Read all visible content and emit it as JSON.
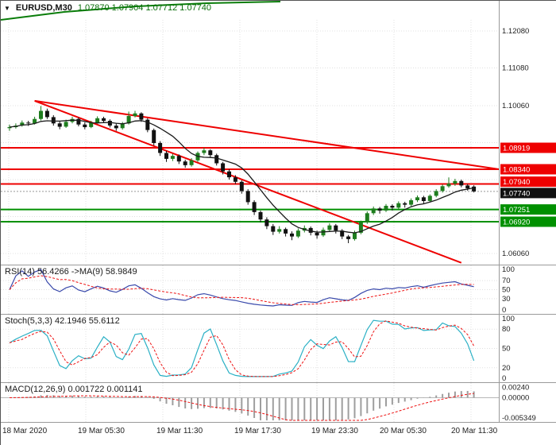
{
  "header": {
    "dropdown_icon": "▼",
    "symbol": "EURUSD,M30",
    "ohlc": "1.07870 1.07904 1.07712 1.07740"
  },
  "colors": {
    "bull": "#1e7d1e",
    "bear": "#111111",
    "trend": "#ee0000",
    "level_red": "#ee0000",
    "level_green": "#009000",
    "badge_black": "#111111",
    "rsi_line": "#3949ab",
    "stoch_main": "#2ab0c5",
    "signal_red": "#ee1111",
    "macd_hist": "#9e9e9e",
    "ma_line": "#1a1a1a",
    "top_curve": "#0a7d0a",
    "grid": "#e0e0e0"
  },
  "chart_data": [
    {
      "id": "price",
      "type": "candlestick",
      "symbol": "EURUSD",
      "timeframe": "M30",
      "current_price": 1.0774,
      "ylim": [
        1.058,
        1.123
      ],
      "x_labels": [
        "18 Mar 2020",
        "19 Mar 05:30",
        "19 Mar 11:30",
        "19 Mar 17:30",
        "19 Mar 23:30",
        "20 Mar 05:30",
        "20 Mar 11:30"
      ],
      "axis_labels": [
        {
          "text": "1.12080",
          "price": 1.1208
        },
        {
          "text": "1.11080",
          "price": 1.1108
        },
        {
          "text": "1.10060",
          "price": 1.1006
        },
        {
          "text": "1.06060",
          "price": 1.0606
        }
      ],
      "badges": [
        {
          "text": "1.08919",
          "price": 1.08919,
          "color": "red",
          "dy": 0
        },
        {
          "text": "1.08340",
          "price": 1.0834,
          "color": "red",
          "dy": 0
        },
        {
          "text": "1.07940",
          "price": 1.0794,
          "color": "red",
          "dy": -3
        },
        {
          "text": "1.07740",
          "price": 1.0774,
          "color": "black",
          "dy": 2
        },
        {
          "text": "1.07251",
          "price": 1.07251,
          "color": "green",
          "dy": 0
        },
        {
          "text": "1.06920",
          "price": 1.0692,
          "color": "green",
          "dy": 0
        }
      ],
      "hlines": [
        {
          "price": 1.08919,
          "color": "red"
        },
        {
          "price": 1.0834,
          "color": "red"
        },
        {
          "price": 1.0794,
          "color": "red"
        },
        {
          "price": 1.07251,
          "color": "green"
        },
        {
          "price": 1.0692,
          "color": "green"
        }
      ],
      "trendlines": [
        {
          "i1": 4,
          "p1": 1.1019,
          "i2": 72,
          "p2": 1.0581
        },
        {
          "i1": 4,
          "p1": 1.1019,
          "i2": 78,
          "p2": 1.0834
        }
      ],
      "top_curve": [
        [
          0,
          24
        ],
        [
          80,
          14
        ],
        [
          170,
          7
        ],
        [
          260,
          3
        ],
        [
          352,
          1
        ]
      ],
      "ma_period": 8,
      "ohlc": [
        [
          1.0945,
          1.0955,
          1.0938,
          1.0948
        ],
        [
          1.0948,
          1.0958,
          1.0944,
          1.0952
        ],
        [
          1.0952,
          1.0966,
          1.0949,
          1.096
        ],
        [
          1.096,
          1.0965,
          1.0951,
          1.0958
        ],
        [
          1.0958,
          1.0976,
          1.0955,
          1.097
        ],
        [
          1.097,
          1.1005,
          1.0966,
          1.0992
        ],
        [
          1.0992,
          1.0998,
          1.097,
          1.0975
        ],
        [
          1.0975,
          1.098,
          1.0952,
          1.0958
        ],
        [
          1.0958,
          1.0964,
          1.0942,
          1.0949
        ],
        [
          1.0949,
          1.0968,
          1.0946,
          1.0962
        ],
        [
          1.0962,
          1.0976,
          1.0958,
          1.097
        ],
        [
          1.097,
          1.0974,
          1.095,
          1.0955
        ],
        [
          1.0955,
          1.0961,
          1.0942,
          1.0948
        ],
        [
          1.0948,
          1.0965,
          1.0945,
          1.096
        ],
        [
          1.096,
          1.0977,
          1.0957,
          1.0972
        ],
        [
          1.0972,
          1.0976,
          1.096,
          1.0965
        ],
        [
          1.0965,
          1.0969,
          1.0947,
          1.0952
        ],
        [
          1.0952,
          1.0958,
          1.0938,
          1.0945
        ],
        [
          1.0945,
          1.0962,
          1.0941,
          1.0958
        ],
        [
          1.0958,
          1.099,
          1.0955,
          1.0978
        ],
        [
          1.0978,
          1.0992,
          1.0974,
          1.0985
        ],
        [
          1.0985,
          1.0988,
          1.0962,
          1.0968
        ],
        [
          1.0968,
          1.0972,
          1.0934,
          1.094
        ],
        [
          1.094,
          1.0944,
          1.0898,
          1.0905
        ],
        [
          1.0905,
          1.091,
          1.087,
          1.0878
        ],
        [
          1.0878,
          1.0884,
          1.0854,
          1.0862
        ],
        [
          1.0862,
          1.0876,
          1.0856,
          1.087
        ],
        [
          1.087,
          1.0874,
          1.0848,
          1.0855
        ],
        [
          1.0855,
          1.086,
          1.0838,
          1.0845
        ],
        [
          1.0845,
          1.0864,
          1.0841,
          1.0858
        ],
        [
          1.0858,
          1.0882,
          1.0854,
          1.0878
        ],
        [
          1.0878,
          1.0892,
          1.0872,
          1.0885
        ],
        [
          1.0885,
          1.0888,
          1.0866,
          1.0872
        ],
        [
          1.0872,
          1.0876,
          1.0844,
          1.085
        ],
        [
          1.085,
          1.0854,
          1.082,
          1.0828
        ],
        [
          1.0828,
          1.0834,
          1.0806,
          1.0812
        ],
        [
          1.0812,
          1.0818,
          1.0794,
          1.08
        ],
        [
          1.08,
          1.0804,
          1.0768,
          1.0775
        ],
        [
          1.0775,
          1.078,
          1.0738,
          1.0745
        ],
        [
          1.0745,
          1.075,
          1.071,
          1.0718
        ],
        [
          1.0718,
          1.0722,
          1.069,
          1.0698
        ],
        [
          1.0698,
          1.0704,
          1.0672,
          1.068
        ],
        [
          1.068,
          1.0686,
          1.0656,
          1.0665
        ],
        [
          1.0665,
          1.068,
          1.066,
          1.0672
        ],
        [
          1.0672,
          1.0676,
          1.0652,
          1.066
        ],
        [
          1.066,
          1.0666,
          1.0642,
          1.0652
        ],
        [
          1.0652,
          1.0674,
          1.0648,
          1.0668
        ],
        [
          1.0668,
          1.0682,
          1.0663,
          1.0675
        ],
        [
          1.0675,
          1.0679,
          1.0655,
          1.0662
        ],
        [
          1.0662,
          1.0668,
          1.0646,
          1.0655
        ],
        [
          1.0655,
          1.0676,
          1.0651,
          1.067
        ],
        [
          1.067,
          1.0688,
          1.0666,
          1.0682
        ],
        [
          1.0682,
          1.0686,
          1.066,
          1.0668
        ],
        [
          1.0668,
          1.0672,
          1.0645,
          1.0652
        ],
        [
          1.0652,
          1.0656,
          1.0634,
          1.0645
        ],
        [
          1.0645,
          1.0668,
          1.0641,
          1.0662
        ],
        [
          1.0662,
          1.0695,
          1.0658,
          1.069
        ],
        [
          1.069,
          1.072,
          1.0686,
          1.0715
        ],
        [
          1.0715,
          1.0733,
          1.071,
          1.0728
        ],
        [
          1.0728,
          1.0732,
          1.0714,
          1.0722
        ],
        [
          1.0722,
          1.074,
          1.0718,
          1.0735
        ],
        [
          1.0735,
          1.0739,
          1.0722,
          1.073
        ],
        [
          1.073,
          1.0747,
          1.0726,
          1.0742
        ],
        [
          1.0742,
          1.0746,
          1.073,
          1.0738
        ],
        [
          1.0738,
          1.0755,
          1.0734,
          1.075
        ],
        [
          1.075,
          1.0763,
          1.0745,
          1.0758
        ],
        [
          1.0758,
          1.0762,
          1.074,
          1.0748
        ],
        [
          1.0748,
          1.0766,
          1.0744,
          1.0762
        ],
        [
          1.0762,
          1.078,
          1.0758,
          1.0775
        ],
        [
          1.0775,
          1.0793,
          1.0771,
          1.0788
        ],
        [
          1.0788,
          1.0812,
          1.0784,
          1.0795
        ],
        [
          1.0795,
          1.0808,
          1.0789,
          1.0802
        ],
        [
          1.0802,
          1.0806,
          1.0785,
          1.079
        ],
        [
          1.079,
          1.0794,
          1.0776,
          1.0782
        ],
        [
          1.0787,
          1.07904,
          1.07712,
          1.0774
        ]
      ]
    },
    {
      "id": "rsi",
      "type": "line",
      "label": "RSI(14) 56.4266  ->MA(9) 58.9849",
      "params": {
        "period": 14,
        "ma_period": 9
      },
      "current": 56.4266,
      "ma_current": 58.9849,
      "ylim": [
        0,
        100
      ],
      "levels": [
        70,
        50,
        30
      ],
      "axis": [
        {
          "text": "100",
          "v": 100
        },
        {
          "text": "70",
          "v": 70
        },
        {
          "text": "50",
          "v": 50
        },
        {
          "text": "30",
          "v": 30
        },
        {
          "text": "0",
          "v": 0
        }
      ]
    },
    {
      "id": "stoch",
      "type": "line",
      "label": "Stoch(5,3,3) 42.1946 55.6112",
      "params": {
        "k": 5,
        "d": 3,
        "slowing": 3
      },
      "current": 42.1946,
      "signal_current": 55.6112,
      "ylim": [
        0,
        100
      ],
      "levels": [
        80,
        50,
        20
      ],
      "axis": [
        {
          "text": "100",
          "v": 100
        },
        {
          "text": "80",
          "v": 80
        },
        {
          "text": "50",
          "v": 50
        },
        {
          "text": "20",
          "v": 20
        },
        {
          "text": "0",
          "v": 0
        }
      ]
    },
    {
      "id": "macd",
      "type": "histogram",
      "label": "MACD(12,26,9) 0.001722 0.001141",
      "params": {
        "fast": 12,
        "slow": 26,
        "signal": 9
      },
      "current": 0.001722,
      "signal_current": 0.001141,
      "ylim": [
        -0.005349,
        0.0031
      ],
      "axis": [
        {
          "text": "0.00240",
          "v": 0.0024
        },
        {
          "text": "0.00000",
          "v": 0
        },
        {
          "text": "-0.005349",
          "v": -0.005349
        }
      ]
    }
  ]
}
